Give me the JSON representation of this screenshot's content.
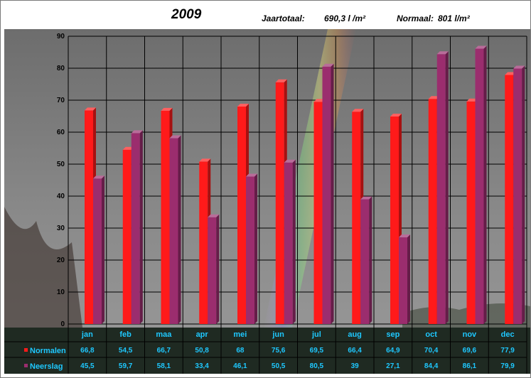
{
  "header": {
    "title": "2009",
    "total_label": "Jaartotaal:",
    "total_value": "690,3 l /m²",
    "normal_label": "Normaal:",
    "normal_value": "801 l/m²"
  },
  "colors": {
    "normalen": "#ff1a1a",
    "neerslag": "#9b2d6e",
    "grid": "#000000",
    "label_text": "#1ec8ff"
  },
  "chart_data": {
    "type": "bar",
    "categories": [
      "jan",
      "feb",
      "maa",
      "apr",
      "mei",
      "jun",
      "jul",
      "aug",
      "sep",
      "oct",
      "nov",
      "dec"
    ],
    "series": [
      {
        "name": "Normalen",
        "values": [
          66.8,
          54.5,
          66.7,
          50.8,
          68,
          75.6,
          69.5,
          66.4,
          64.9,
          70.4,
          69.6,
          77.9
        ],
        "labels": [
          "66,8",
          "54,5",
          "66,7",
          "50,8",
          "68",
          "75,6",
          "69,5",
          "66,4",
          "64,9",
          "70,4",
          "69,6",
          "77,9"
        ]
      },
      {
        "name": "Neerslag",
        "values": [
          45.5,
          59.7,
          58.1,
          33.4,
          46.1,
          50.5,
          80.5,
          39,
          27.1,
          84.4,
          86.1,
          79.9
        ],
        "labels": [
          "45,5",
          "59,7",
          "58,1",
          "33,4",
          "46,1",
          "50,5",
          "80,5",
          "39",
          "27,1",
          "84,4",
          "86,1",
          "79,9"
        ]
      }
    ],
    "yticks": [
      "0",
      "10",
      "20",
      "30",
      "40",
      "50",
      "60",
      "70",
      "80",
      "90"
    ],
    "ylim": [
      0,
      90
    ],
    "grid": true,
    "legend": "data-table-left"
  }
}
